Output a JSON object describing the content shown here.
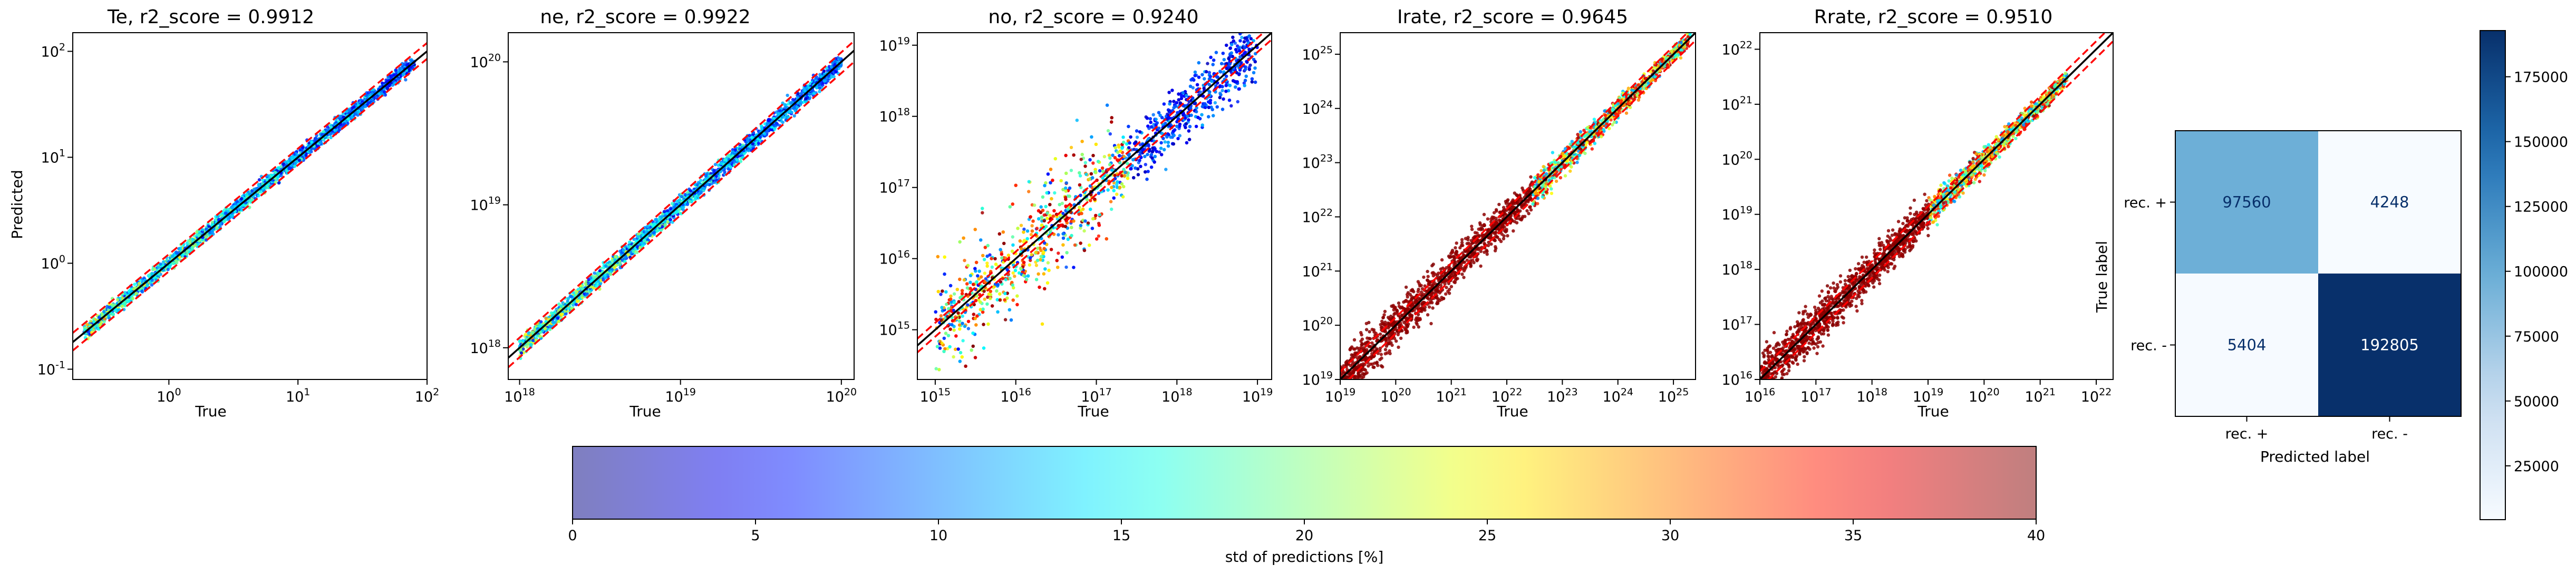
{
  "chart_data": [
    {
      "type": "scatter",
      "title": "Te, r2_score = 0.9912",
      "xlabel": "True",
      "ylabel": "Predicted",
      "scale": "log",
      "xlim": [
        0.18,
        100
      ],
      "ylim": [
        0.08,
        150
      ],
      "xticks": [
        {
          "b": "10",
          "e": "0"
        },
        {
          "b": "10",
          "e": "1"
        },
        {
          "b": "10",
          "e": "2"
        }
      ],
      "yticks": [
        {
          "b": "10",
          "e": "-1"
        },
        {
          "b": "10",
          "e": "0"
        },
        {
          "b": "10",
          "e": "1"
        },
        {
          "b": "10",
          "e": "2"
        }
      ],
      "data_range": [
        0.22,
        80
      ],
      "spread": 0.055,
      "noise_range": 0.3,
      "series": [
        {
          "role": "diagonal y = x",
          "x": [
            0.18,
            100
          ],
          "y": [
            0.18,
            100
          ],
          "color": "#000000"
        },
        {
          "role": "upper bound",
          "x": [
            0.18,
            100
          ],
          "y": [
            0.22,
            120
          ],
          "color": "#ff0000",
          "dashed": true
        },
        {
          "role": "lower bound",
          "x": [
            0.18,
            100
          ],
          "y": [
            0.15,
            85
          ],
          "color": "#ff0000",
          "dashed": true
        }
      ],
      "scatter_color_scale": "std of predictions [%]"
    },
    {
      "type": "scatter",
      "title": "ne, r2_score = 0.9922",
      "xlabel": "True",
      "ylabel": "",
      "scale": "log",
      "xlim": [
        8.5e+17,
        1.2e+20
      ],
      "ylim": [
        6e+17,
        1.6e+20
      ],
      "xticks": [
        {
          "b": "10",
          "e": "18"
        },
        {
          "b": "10",
          "e": "19"
        },
        {
          "b": "10",
          "e": "20"
        }
      ],
      "yticks": [
        {
          "b": "10",
          "e": "18"
        },
        {
          "b": "10",
          "e": "19"
        },
        {
          "b": "10",
          "e": "20"
        }
      ],
      "data_range": [
        1e+18,
        1e+20
      ],
      "spread": 0.05,
      "noise_range": 0.25,
      "series": [
        {
          "role": "diagonal y = x",
          "x": [
            8.5e+17,
            1.2e+20
          ],
          "y": [
            8.5e+17,
            1.2e+20
          ],
          "color": "#000000"
        },
        {
          "role": "upper bound",
          "x": [
            8.5e+17,
            1.2e+20
          ],
          "y": [
            1e+18,
            1.4e+20
          ],
          "color": "#ff0000",
          "dashed": true
        },
        {
          "role": "lower bound",
          "x": [
            8.5e+17,
            1.2e+20
          ],
          "y": [
            7.3e+17,
            1e+20
          ],
          "color": "#ff0000",
          "dashed": true
        }
      ],
      "scatter_color_scale": "std of predictions [%]"
    },
    {
      "type": "scatter",
      "title": "no, r2_score = 0.9240",
      "xlabel": "True",
      "ylabel": "",
      "scale": "log",
      "xlim": [
        600000000000000.0,
        1.5e+19
      ],
      "ylim": [
        200000000000000.0,
        1.5e+19
      ],
      "xticks": [
        {
          "b": "10",
          "e": "15"
        },
        {
          "b": "10",
          "e": "16"
        },
        {
          "b": "10",
          "e": "17"
        },
        {
          "b": "10",
          "e": "18"
        },
        {
          "b": "10",
          "e": "19"
        }
      ],
      "yticks": [
        {
          "b": "10",
          "e": "15"
        },
        {
          "b": "10",
          "e": "16"
        },
        {
          "b": "10",
          "e": "17"
        },
        {
          "b": "10",
          "e": "18"
        },
        {
          "b": "10",
          "e": "19"
        }
      ],
      "data_range": [
        1000000000000000.0,
        1e+19
      ],
      "spread": 0.35,
      "noise_range": 1.0,
      "series": [
        {
          "role": "diagonal y = x",
          "x": [
            600000000000000.0,
            1.5e+19
          ],
          "y": [
            600000000000000.0,
            1.5e+19
          ],
          "color": "#000000"
        },
        {
          "role": "upper bound",
          "x": [
            600000000000000.0,
            1.5e+19
          ],
          "y": [
            750000000000000.0,
            1.9e+19
          ],
          "color": "#ff0000",
          "dashed": true
        },
        {
          "role": "lower bound",
          "x": [
            600000000000000.0,
            1.5e+19
          ],
          "y": [
            480000000000000.0,
            1.2e+19
          ],
          "color": "#ff0000",
          "dashed": true
        }
      ],
      "scatter_color_scale": "std of predictions [%]"
    },
    {
      "type": "scatter",
      "title": "Irate, r2_score = 0.9645",
      "xlabel": "True",
      "ylabel": "",
      "scale": "log",
      "xlim": [
        1e+19,
        2.5e+25
      ],
      "ylim": [
        1e+19,
        2.5e+25
      ],
      "xticks": [
        {
          "b": "10",
          "e": "19"
        },
        {
          "b": "10",
          "e": "20"
        },
        {
          "b": "10",
          "e": "21"
        },
        {
          "b": "10",
          "e": "22"
        },
        {
          "b": "10",
          "e": "23"
        },
        {
          "b": "10",
          "e": "24"
        },
        {
          "b": "10",
          "e": "25"
        }
      ],
      "yticks": [
        {
          "b": "10",
          "e": "19"
        },
        {
          "b": "10",
          "e": "20"
        },
        {
          "b": "10",
          "e": "21"
        },
        {
          "b": "10",
          "e": "22"
        },
        {
          "b": "10",
          "e": "23"
        },
        {
          "b": "10",
          "e": "24"
        },
        {
          "b": "10",
          "e": "25"
        }
      ],
      "data_range": [
        1e+19,
        2e+25
      ],
      "spread": 0.4,
      "noise_range": 1.2,
      "series": [
        {
          "role": "diagonal y = x",
          "x": [
            1e+19,
            2.5e+25
          ],
          "y": [
            1e+19,
            2.5e+25
          ],
          "color": "#000000"
        },
        {
          "role": "upper bound",
          "x": [
            1e+19,
            2.5e+25
          ],
          "y": [
            1.4e+19,
            3.5e+25
          ],
          "color": "#ff0000",
          "dashed": true
        },
        {
          "role": "lower bound",
          "x": [
            1e+19,
            2.5e+25
          ],
          "y": [
            7e+18,
            1.8e+25
          ],
          "color": "#ff0000",
          "dashed": true
        }
      ],
      "scatter_color_scale": "std of predictions [%]"
    },
    {
      "type": "scatter",
      "title": "Rrate, r2_score = 0.9510",
      "xlabel": "True",
      "ylabel": "",
      "scale": "log",
      "xlim": [
        1e+16,
        2e+22
      ],
      "ylim": [
        1e+16,
        2e+22
      ],
      "xticks": [
        {
          "b": "10",
          "e": "16"
        },
        {
          "b": "10",
          "e": "17"
        },
        {
          "b": "10",
          "e": "18"
        },
        {
          "b": "10",
          "e": "19"
        },
        {
          "b": "10",
          "e": "20"
        },
        {
          "b": "10",
          "e": "21"
        },
        {
          "b": "10",
          "e": "22"
        }
      ],
      "yticks": [
        {
          "b": "10",
          "e": "16"
        },
        {
          "b": "10",
          "e": "17"
        },
        {
          "b": "10",
          "e": "18"
        },
        {
          "b": "10",
          "e": "19"
        },
        {
          "b": "10",
          "e": "20"
        },
        {
          "b": "10",
          "e": "21"
        },
        {
          "b": "10",
          "e": "22"
        }
      ],
      "data_range": [
        1e+16,
        3e+21
      ],
      "spread": 0.4,
      "noise_range": 1.2,
      "series": [
        {
          "role": "diagonal y = x",
          "x": [
            1e+16,
            2e+22
          ],
          "y": [
            1e+16,
            2e+22
          ],
          "color": "#000000"
        },
        {
          "role": "upper bound",
          "x": [
            1e+16,
            2e+22
          ],
          "y": [
            1.4e+16,
            2.8e+22
          ],
          "color": "#ff0000",
          "dashed": true
        },
        {
          "role": "lower bound",
          "x": [
            1e+16,
            2e+22
          ],
          "y": [
            7000000000000000.0,
            1.4e+22
          ],
          "color": "#ff0000",
          "dashed": true
        }
      ],
      "scatter_color_scale": "std of predictions [%]"
    },
    {
      "type": "heatmap",
      "title": "",
      "xlabel": "Predicted label",
      "ylabel": "True label",
      "x_categories": [
        "rec. +",
        "rec. -"
      ],
      "y_categories": [
        "rec. +",
        "rec. -"
      ],
      "values": [
        [
          97560,
          4248
        ],
        [
          5404,
          192805
        ]
      ],
      "colormap": "Blues",
      "colorbar": {
        "min": 4248,
        "max": 192805,
        "ticks": [
          25000,
          50000,
          75000,
          100000,
          125000,
          150000,
          175000
        ],
        "labels": [
          "25000",
          "50000",
          "75000",
          "100000",
          "125000",
          "150000",
          "175000"
        ]
      }
    },
    {
      "type": "colorbar",
      "label": "std of predictions [%]",
      "colormap": "jet",
      "alpha": 0.5,
      "range": [
        0,
        40
      ],
      "ticks": [
        0,
        5,
        10,
        15,
        20,
        25,
        30,
        35,
        40
      ],
      "labels": [
        "0",
        "5",
        "10",
        "15",
        "20",
        "25",
        "30",
        "35",
        "40"
      ]
    }
  ]
}
